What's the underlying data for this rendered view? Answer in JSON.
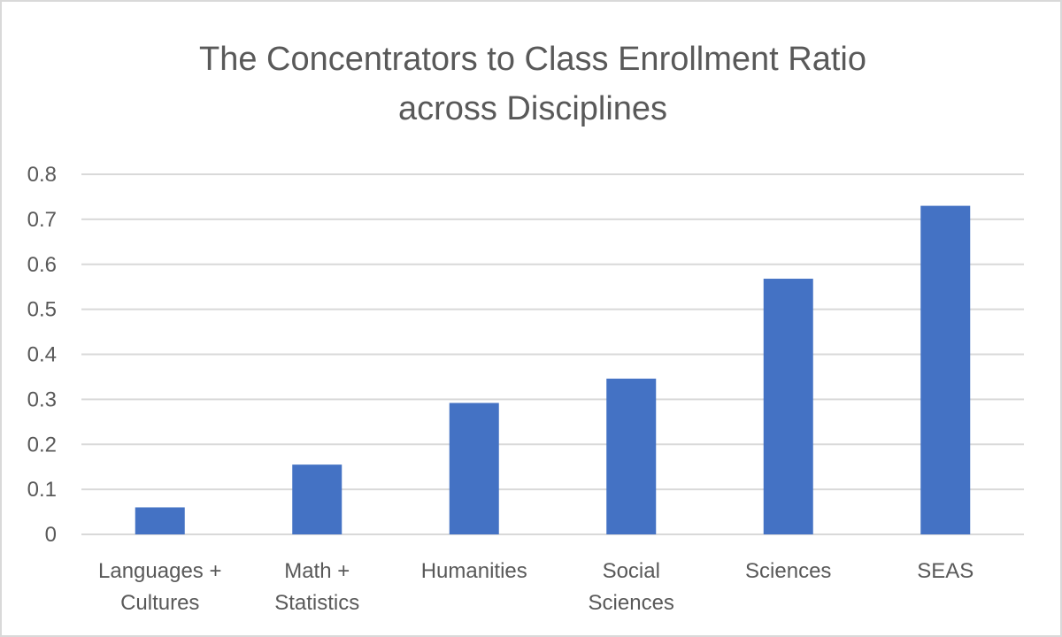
{
  "chart_data": {
    "type": "bar",
    "title_lines": [
      "The Concentrators to Class Enrollment Ratio",
      "across Disciplines"
    ],
    "categories": [
      [
        "Languages +",
        "Cultures"
      ],
      [
        "Math +",
        "Statistics"
      ],
      [
        "Humanities"
      ],
      [
        "Social",
        "Sciences"
      ],
      [
        "Sciences"
      ],
      [
        "SEAS"
      ]
    ],
    "values": [
      0.06,
      0.155,
      0.292,
      0.346,
      0.568,
      0.73
    ],
    "ylim": [
      0,
      0.8
    ],
    "yticks": [
      "0",
      "0.1",
      "0.2",
      "0.3",
      "0.4",
      "0.5",
      "0.6",
      "0.7",
      "0.8"
    ],
    "grid": true,
    "legend": "none",
    "colors": {
      "bar": "#4472c4",
      "grid": "#d9d9d9",
      "text": "#595959",
      "border": "#d9d9d9"
    }
  }
}
